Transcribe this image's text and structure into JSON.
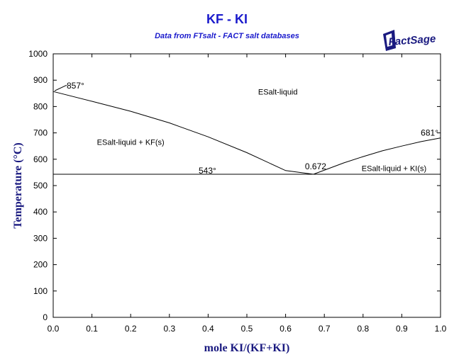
{
  "chart_data": {
    "type": "line",
    "title": "KF - KI",
    "subtitle": "Data from FTsalt - FACT salt databases",
    "logo_text": "FactSage",
    "xlabel": "mole KI/(KF+KI)",
    "ylabel_main": "Temperature",
    "ylabel_unit": "(°C)",
    "xlim": [
      0,
      1
    ],
    "ylim": [
      0,
      1000
    ],
    "x_ticks": [
      0.0,
      0.1,
      0.2,
      0.3,
      0.4,
      0.5,
      0.6,
      0.7,
      0.8,
      0.9,
      1.0
    ],
    "x_tick_labels": [
      "0.0",
      "0.1",
      "0.2",
      "0.3",
      "0.4",
      "0.5",
      "0.6",
      "0.7",
      "0.8",
      "0.9",
      "1.0"
    ],
    "y_ticks": [
      0,
      100,
      200,
      300,
      400,
      500,
      600,
      700,
      800,
      900,
      1000
    ],
    "y_tick_labels": [
      "0",
      "100",
      "200",
      "300",
      "400",
      "500",
      "600",
      "700",
      "800",
      "900",
      "1000"
    ],
    "grid": false,
    "colors": {
      "title": "#1a1acc",
      "axis_title": "#1a1a80",
      "lines": "#000000"
    },
    "series": [
      {
        "x": [
          0.0,
          0.1,
          0.2,
          0.3,
          0.4,
          0.5,
          0.6,
          0.672
        ],
        "y": [
          857,
          820,
          782,
          738,
          685,
          625,
          557,
          543
        ]
      },
      {
        "x": [
          0.672,
          0.75,
          0.8,
          0.85,
          0.9,
          0.95,
          1.0
        ],
        "y": [
          543,
          586,
          610,
          632,
          650,
          667,
          681
        ]
      },
      {
        "x": [
          0.0,
          1.0
        ],
        "y": [
          543,
          543
        ]
      }
    ],
    "point_labels": [
      {
        "text": "857°",
        "x": 0.0,
        "y": 857
      },
      {
        "text": "543°",
        "x": 0.4,
        "y": 543
      },
      {
        "text": "0.672",
        "x": 0.672,
        "y": 543
      },
      {
        "text": "681°",
        "x": 1.0,
        "y": 681
      }
    ],
    "region_labels": [
      {
        "text": "ESalt-liquid",
        "x": 0.58,
        "y": 845
      },
      {
        "text": "ESalt-liquid + KF(s)",
        "x": 0.2,
        "y": 655
      },
      {
        "text": "ESalt-liquid + KI(s)",
        "x": 0.88,
        "y": 555
      }
    ]
  }
}
